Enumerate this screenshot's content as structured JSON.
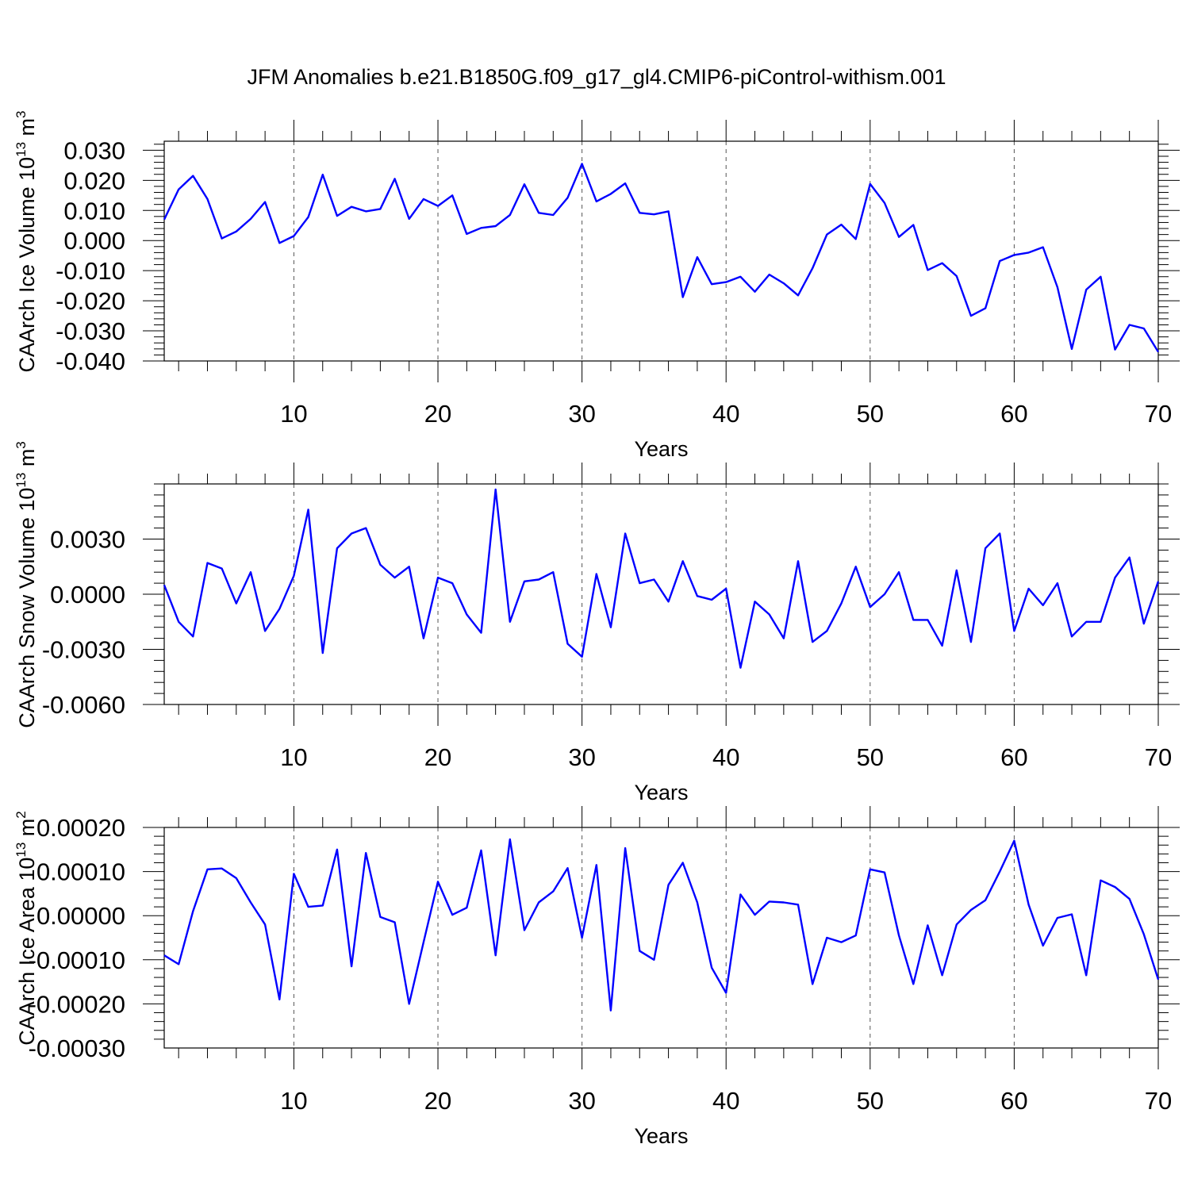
{
  "title": "JFM Anomalies b.e21.B1850G.f09_g17_gl4.CMIP6-piControl-withism.001",
  "colors": {
    "line": "#0000ff",
    "axes": "#000000",
    "grid": "#555555"
  },
  "chart_data": [
    {
      "type": "line",
      "ylabel": "CAArch Ice Volume 10",
      "ylabel_exp": "13",
      "ylabel_unit": " m",
      "ylabel_unit_exp": "3",
      "xlabel": "Years",
      "xlim": [
        1,
        70
      ],
      "ylim": [
        -0.04,
        0.033
      ],
      "x_ticks": [
        10,
        20,
        30,
        40,
        50,
        60,
        70
      ],
      "y_ticks": [
        0.03,
        0.02,
        0.01,
        0.0,
        -0.01,
        -0.02,
        -0.03,
        -0.04
      ],
      "y_tick_labels": [
        "0.030",
        "0.020",
        "0.010",
        "0.000",
        "-0.010",
        "-0.020",
        "-0.030",
        "-0.040"
      ],
      "grid": "vertical dashed at major x ticks",
      "series": [
        {
          "values": [
            0.007,
            0.017,
            0.0215,
            0.0138,
            0.0007,
            0.003,
            0.0072,
            0.0128,
            -0.0008,
            0.0015,
            0.0078,
            0.0219,
            0.0082,
            0.0112,
            0.0097,
            0.0105,
            0.0205,
            0.0072,
            0.0138,
            0.0115,
            0.015,
            0.0022,
            0.0042,
            0.0048,
            0.0085,
            0.0187,
            0.0092,
            0.0085,
            0.0142,
            0.0255,
            0.013,
            0.0155,
            0.019,
            0.0092,
            0.0087,
            0.0097,
            -0.0188,
            -0.0055,
            -0.0145,
            -0.0138,
            -0.012,
            -0.017,
            -0.0113,
            -0.0142,
            -0.0182,
            -0.0092,
            0.002,
            0.0053,
            0.0005,
            0.0188,
            0.0125,
            0.0012,
            0.0052,
            -0.0098,
            -0.0075,
            -0.0118,
            -0.025,
            -0.0225,
            -0.0068,
            -0.0048,
            -0.004,
            -0.0022,
            -0.0155,
            -0.036,
            -0.0163,
            -0.012,
            -0.0362,
            -0.028,
            -0.0292,
            -0.037
          ]
        }
      ]
    },
    {
      "type": "line",
      "ylabel": "CAArch Snow Volume 10",
      "ylabel_exp": "13",
      "ylabel_unit": " m",
      "ylabel_unit_exp": "3",
      "xlabel": "Years",
      "xlim": [
        1,
        70
      ],
      "ylim": [
        -0.006,
        0.006
      ],
      "x_ticks": [
        10,
        20,
        30,
        40,
        50,
        60,
        70
      ],
      "y_ticks": [
        0.003,
        0.0,
        -0.003,
        -0.006
      ],
      "y_tick_labels": [
        "0.0030",
        "0.0000",
        "-0.0030",
        "-0.0060"
      ],
      "grid": "vertical dashed at major x ticks",
      "series": [
        {
          "values": [
            0.0005,
            -0.0015,
            -0.0023,
            0.0017,
            0.0014,
            -0.0005,
            0.0012,
            -0.002,
            -0.0008,
            0.001,
            0.0046,
            -0.0032,
            0.0025,
            0.0033,
            0.0036,
            0.0016,
            0.0009,
            0.0015,
            -0.0024,
            0.0009,
            0.0006,
            -0.0011,
            -0.0021,
            0.0057,
            -0.0015,
            0.0007,
            0.0008,
            0.0012,
            -0.0027,
            -0.0034,
            0.0011,
            -0.0018,
            0.0033,
            0.0006,
            0.0008,
            -0.0004,
            0.0018,
            -0.0001,
            -0.0003,
            0.0003,
            -0.004,
            -0.0004,
            -0.0011,
            -0.0024,
            0.0018,
            -0.0026,
            -0.002,
            -0.0005,
            0.0015,
            -0.0007,
            0.0,
            0.0012,
            -0.0014,
            -0.0014,
            -0.0028,
            0.0013,
            -0.0026,
            0.0025,
            0.0033,
            -0.002,
            0.0003,
            -0.0006,
            0.0006,
            -0.0023,
            -0.0015,
            -0.0015,
            0.0009,
            0.002,
            -0.0016,
            0.0007
          ]
        }
      ]
    },
    {
      "type": "line",
      "ylabel": "CAArch Ice Area 10",
      "ylabel_exp": "13",
      "ylabel_unit": " m",
      "ylabel_unit_exp": "2",
      "xlabel": "Years",
      "xlim": [
        1,
        70
      ],
      "ylim": [
        -0.0003,
        0.0002
      ],
      "x_ticks": [
        10,
        20,
        30,
        40,
        50,
        60,
        70
      ],
      "y_ticks": [
        0.0002,
        0.0001,
        0.0,
        -0.0001,
        -0.0002,
        -0.0003
      ],
      "y_tick_labels": [
        "0.00020",
        "0.00010",
        "0.00000",
        "-0.00010",
        "-0.00020",
        "-0.00030"
      ],
      "grid": "vertical dashed at major x ticks",
      "series": [
        {
          "values": [
            -9e-05,
            -0.00011,
            1e-05,
            0.000105,
            0.000107,
            8.5e-05,
            3e-05,
            -2e-05,
            -0.00019,
            9.5e-05,
            2e-05,
            2.3e-05,
            0.00015,
            -0.000115,
            0.000142,
            -3e-06,
            -1.5e-05,
            -0.0002,
            -6e-05,
            7.7e-05,
            2e-06,
            1.8e-05,
            0.000148,
            -9e-05,
            0.000173,
            -3.3e-05,
            3e-05,
            5.5e-05,
            0.000108,
            -5e-05,
            0.000115,
            -0.000215,
            0.000153,
            -8e-05,
            -0.0001,
            7e-05,
            0.00012,
            3e-05,
            -0.000118,
            -0.000175,
            4.8e-05,
            2e-06,
            3.2e-05,
            3e-05,
            2.5e-05,
            -0.000155,
            -5e-05,
            -6e-05,
            -4.5e-05,
            0.000105,
            9.8e-05,
            -4.5e-05,
            -0.000155,
            -2.2e-05,
            -0.000135,
            -2e-05,
            1.3e-05,
            3.5e-05,
            0.0001,
            0.00017,
            2.5e-05,
            -6.8e-05,
            -5e-06,
            3e-06,
            -0.000135,
            8e-05,
            6.5e-05,
            3.8e-05,
            -4.2e-05,
            -0.000145
          ]
        }
      ]
    }
  ]
}
